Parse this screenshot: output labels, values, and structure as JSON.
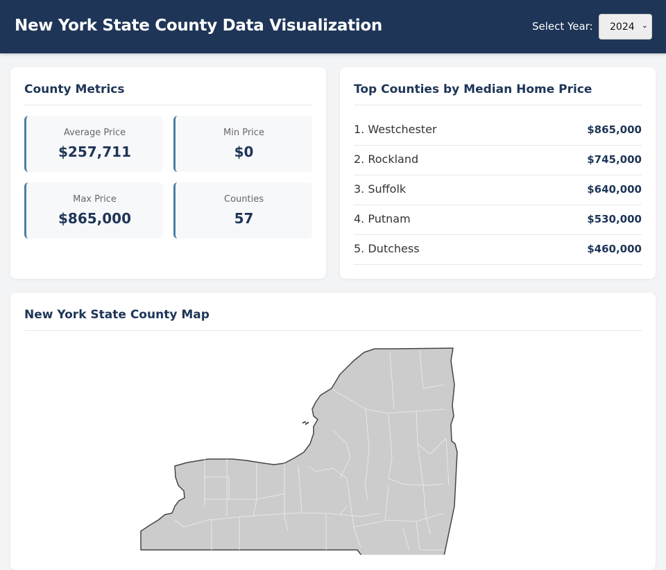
{
  "header": {
    "title": "New York State County Data Visualization",
    "year_label": "Select Year:",
    "year_value": "2024"
  },
  "metrics": {
    "title": "County Metrics",
    "items": [
      {
        "label": "Average Price",
        "value": "$257,711"
      },
      {
        "label": "Min Price",
        "value": "$0"
      },
      {
        "label": "Max Price",
        "value": "$865,000"
      },
      {
        "label": "Counties",
        "value": "57"
      }
    ]
  },
  "top": {
    "title": "Top Counties by Median Home Price",
    "items": [
      {
        "name": "1. Westchester",
        "price": "$865,000"
      },
      {
        "name": "2. Rockland",
        "price": "$745,000"
      },
      {
        "name": "3. Suffolk",
        "price": "$640,000"
      },
      {
        "name": "4. Putnam",
        "price": "$530,000"
      },
      {
        "name": "5. Dutchess",
        "price": "$460,000"
      }
    ]
  },
  "map": {
    "title": "New York State County Map",
    "fill": "#cccccc",
    "stroke": "#444444"
  },
  "colors": {
    "primary": "#1e3557",
    "accent": "#4a7fa5",
    "background": "#f3f4f6"
  }
}
